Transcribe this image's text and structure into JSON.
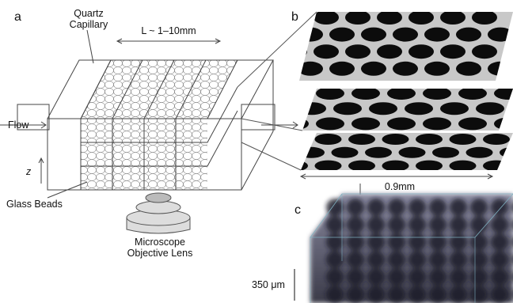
{
  "panels": {
    "a": "a",
    "b": "b",
    "c": "c"
  },
  "a": {
    "capillary": [
      "Quartz",
      "Capillary"
    ],
    "length": "L ~ 1–10mm",
    "flow": "Flow",
    "z_axis": "z",
    "beads": "Glass Beads",
    "lens": [
      "Microscope",
      "Objective Lens"
    ]
  },
  "b": {
    "width": "0.9mm"
  },
  "c": {
    "scale": "350 μm"
  }
}
